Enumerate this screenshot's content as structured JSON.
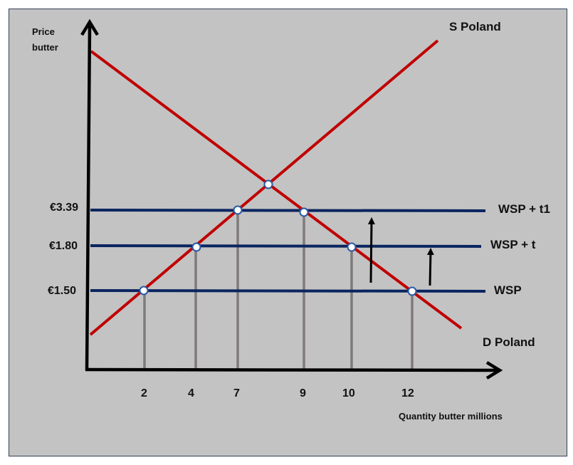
{
  "diagram": {
    "y_axis_label_line1": "Price",
    "y_axis_label_line2": "butter",
    "x_axis_label": "Quantity butter millions",
    "supply_label": "S Poland",
    "demand_label": "D Poland",
    "price_levels": [
      {
        "price_label": "€3.39",
        "line_label": "WSP + t1"
      },
      {
        "price_label": "€1.80",
        "line_label": "WSP + t"
      },
      {
        "price_label": "€1.50",
        "line_label": "WSP"
      }
    ],
    "quantity_ticks": [
      "2",
      "4",
      "7",
      "9",
      "10",
      "12"
    ],
    "colors": {
      "background": "#c3c3c3",
      "curves": "#c00000",
      "price_lines": "#0a2560",
      "drop_lines": "#807a7a",
      "axes": "#000000"
    }
  }
}
